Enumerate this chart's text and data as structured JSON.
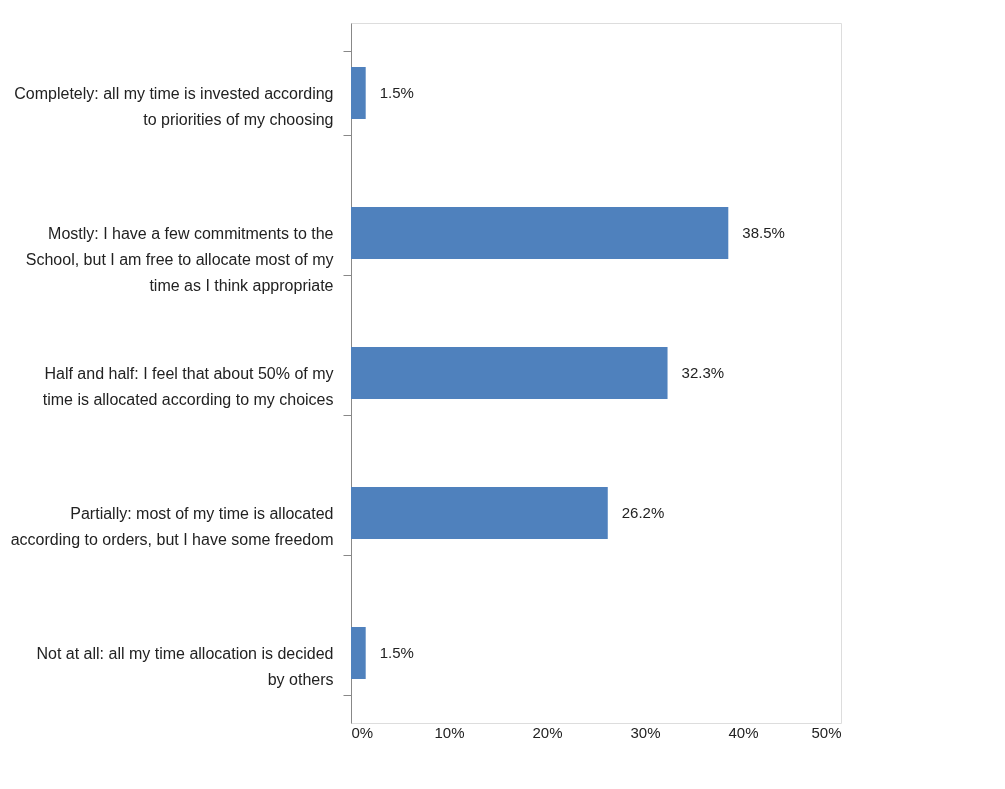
{
  "chart_data": {
    "type": "bar",
    "orientation": "horizontal",
    "categories": [
      "Completely: all my time is invested according to priorities of my choosing",
      "Mostly: I have a few commitments to the School, but I am free to allocate most of my time as I think appropriate",
      "Half and half: I feel that about 50% of my time is allocated according to my choices",
      "Partially: most of my time is allocated according to orders, but I have some freedom",
      "Not at all: all my time allocation is decided by others"
    ],
    "values": [
      1.5,
      38.5,
      32.3,
      26.2,
      1.5
    ],
    "value_labels": [
      "1.5%",
      "38.5%",
      "32.3%",
      "26.2%",
      "1.5%"
    ],
    "color": "#4f81bd",
    "xlim": [
      0,
      50
    ],
    "xticks": [
      {
        "value": 0,
        "label": "0%"
      },
      {
        "value": 10,
        "label": "10%"
      },
      {
        "value": 20,
        "label": "20%"
      },
      {
        "value": 30,
        "label": "30%"
      },
      {
        "value": 40,
        "label": "40%"
      },
      {
        "value": 50,
        "label": "50%"
      }
    ],
    "grid": false
  }
}
